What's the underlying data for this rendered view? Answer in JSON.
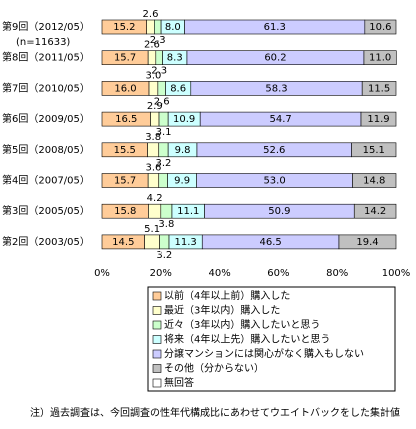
{
  "chart_data": {
    "type": "stacked_barh",
    "categories": [
      "第9回（2012/05）",
      "第8回（2011/05）",
      "第7回（2010/05）",
      "第6回（2009/05）",
      "第5回（2008/05）",
      "第4回（2007/05）",
      "第3回（2005/05）",
      "第2回（2003/05）"
    ],
    "annotation": "(n=11633)",
    "series": [
      {
        "name": "以前（4年以上前）購入した",
        "color": "#ffcc99",
        "values": [
          15.2,
          15.7,
          16.0,
          16.5,
          15.5,
          15.7,
          15.8,
          14.5
        ],
        "value_labels": [
          "15.2",
          "15.7",
          "16.0",
          "16.5",
          "15.5",
          "15.7",
          "15.8",
          "14.5"
        ]
      },
      {
        "name": "最近（3年以内）購入した",
        "color": "#ffffcc",
        "values": [
          2.6,
          2.6,
          3.0,
          2.9,
          3.8,
          3.6,
          4.2,
          5.1
        ],
        "value_labels": [
          "2.6",
          "2.6",
          "3.0",
          "2.9",
          "3.8",
          "3.6",
          "4.2",
          "5.1"
        ]
      },
      {
        "name": "近々（3年以内）購入したいと思う",
        "color": "#ccffcc",
        "values": [
          2.3,
          2.3,
          2.6,
          3.1,
          3.2,
          3.0,
          3.8,
          3.2
        ],
        "value_labels": [
          "2.3",
          "2.3",
          "2.6",
          "3.1",
          "3.2",
          null,
          "3.8",
          "3.2"
        ]
      },
      {
        "name": "将来（4年以上先）購入したいと思う",
        "color": "#ccffff",
        "values": [
          8.0,
          8.3,
          8.6,
          10.9,
          9.8,
          9.9,
          11.1,
          11.3
        ],
        "value_labels": [
          "8.0",
          "8.3",
          "8.6",
          "10.9",
          "9.8",
          "9.9",
          "11.1",
          "11.3"
        ]
      },
      {
        "name": "分譲マンションには関心がなく購入もしない",
        "color": "#ccccff",
        "values": [
          61.3,
          60.2,
          58.3,
          54.7,
          52.6,
          53.0,
          50.9,
          46.5
        ],
        "value_labels": [
          "61.3",
          "60.2",
          "58.3",
          "54.7",
          "52.6",
          "53.0",
          "50.9",
          "46.5"
        ]
      },
      {
        "name": "その他（分からない）",
        "color": "#c0c0c0",
        "values": [
          10.6,
          11.0,
          11.5,
          11.9,
          15.1,
          14.8,
          14.2,
          19.4
        ],
        "value_labels": [
          "10.6",
          "11.0",
          "11.5",
          "11.9",
          "15.1",
          "14.8",
          "14.2",
          "19.4"
        ]
      },
      {
        "name": "無回答",
        "color": "#ffffff",
        "values": [
          0,
          0,
          0,
          0,
          0,
          0,
          0,
          0
        ],
        "value_labels": [
          null,
          null,
          null,
          null,
          null,
          null,
          null,
          null
        ]
      }
    ],
    "xlim": [
      0,
      100
    ],
    "xticks": [
      {
        "value": 0,
        "label": "0%"
      },
      {
        "value": 20,
        "label": "20%"
      },
      {
        "value": 40,
        "label": "40%"
      },
      {
        "value": 60,
        "label": "60%"
      },
      {
        "value": 80,
        "label": "80%"
      },
      {
        "value": 100,
        "label": "100%"
      }
    ],
    "footnote": "注）過去調査は、今回調査の性年代構成比にあわせてウエイトバックをした集計値"
  }
}
